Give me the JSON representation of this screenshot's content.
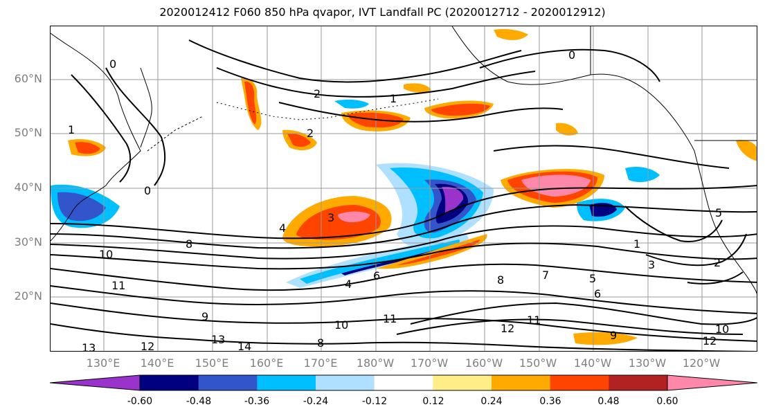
{
  "title": "2020012412 F060 850 hPa qvapor, IVT Landfall PC (2020012712 - 2020012912)",
  "lat_labels": [
    "60°N",
    "50°N",
    "40°N",
    "30°N",
    "20°N"
  ],
  "lon_labels": [
    "130°E",
    "140°E",
    "150°E",
    "160°E",
    "170°E",
    "180°W",
    "170°W",
    "160°W",
    "150°W",
    "140°W",
    "130°W",
    "120°W"
  ],
  "colorbar": {
    "colors": [
      "#9933cc",
      "#000080",
      "#3355cc",
      "#00bfff",
      "#b0e0ff",
      "#ffffff",
      "#ffee88",
      "#ffaa00",
      "#ff4400",
      "#b22222",
      "#ff88aa"
    ],
    "tick_labels": [
      "-0.60",
      "-0.48",
      "-0.36",
      "-0.24",
      "-0.12",
      "0.12",
      "0.24",
      "0.36",
      "0.48",
      "0.60"
    ]
  },
  "contour_labels": [
    "0",
    "1",
    "2",
    "3",
    "4",
    "5",
    "6",
    "7",
    "8",
    "9",
    "10",
    "11",
    "12",
    "13",
    "14"
  ]
}
